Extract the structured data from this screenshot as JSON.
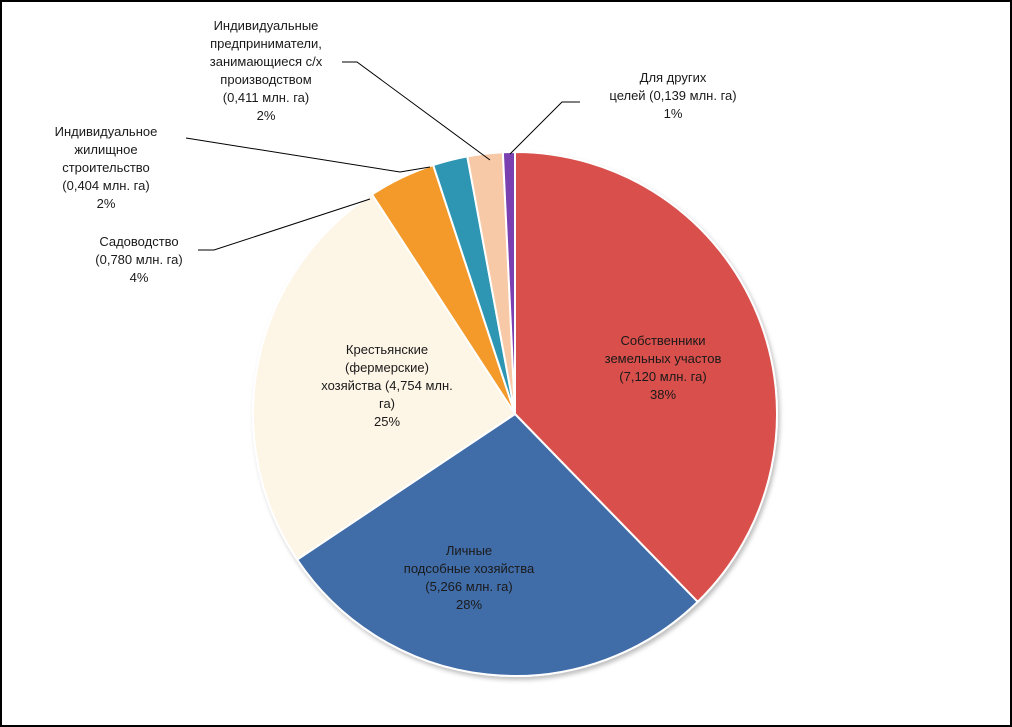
{
  "chart_data": {
    "type": "pie",
    "slices": [
      {
        "lines": [
          "Собственники",
          "земельных участов",
          "(7,120 млн. га)",
          "38%"
        ],
        "value": 7.12,
        "percent": 38,
        "color": "#d94f4b"
      },
      {
        "lines": [
          "Личные",
          "подсобные хозяйства",
          "(5,266 млн. га)",
          "28%"
        ],
        "value": 5.266,
        "percent": 28,
        "color": "#3f6ca8"
      },
      {
        "lines": [
          "Крестьянские",
          "(фермерские)",
          "хозяйства (4,754 млн.",
          "га)",
          "25%"
        ],
        "value": 4.754,
        "percent": 25,
        "color": "#fdf5e6"
      },
      {
        "lines": [
          "Садоводство",
          "(0,780 млн. га)",
          "4%"
        ],
        "value": 0.78,
        "percent": 4,
        "color": "#f39a2b"
      },
      {
        "lines": [
          "Индивидуальное",
          "жилищное",
          "строительство",
          "(0,404 млн. га)",
          "2%"
        ],
        "value": 0.404,
        "percent": 2,
        "color": "#2e96b2"
      },
      {
        "lines": [
          "Индивидуальные",
          "предприниматели,",
          "занимающиеся с/х",
          "производством",
          "(0,411 млн. га)",
          "2%"
        ],
        "value": 0.411,
        "percent": 2,
        "color": "#f7c9a7"
      },
      {
        "lines": [
          "Для других",
          "целей (0,139 млн. га)",
          "1%"
        ],
        "value": 0.139,
        "percent": 1,
        "color": "#7a3fb0"
      }
    ],
    "start_angle": "12 o'clock",
    "direction": "clockwise"
  }
}
